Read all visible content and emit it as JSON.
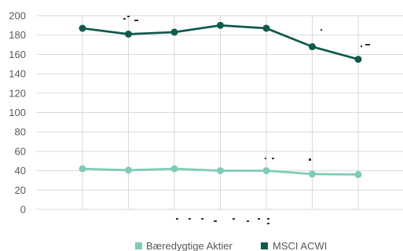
{
  "chart_data": {
    "type": "line",
    "title": "",
    "xlabel": "",
    "ylabel": "",
    "ylim": [
      0,
      200
    ],
    "yticks": [
      0,
      20,
      40,
      60,
      80,
      100,
      120,
      140,
      160,
      180,
      200
    ],
    "grid": true,
    "legend_position": "bottom",
    "x_count": 7,
    "series": [
      {
        "name": "Bæredygtige Aktier",
        "color": "#7fcbb8",
        "values": [
          42,
          40.5,
          42,
          40,
          40,
          36.5,
          36
        ]
      },
      {
        "name": "MSCI ACWI",
        "color": "#0f5a4c",
        "values": [
          187,
          181,
          183,
          190,
          187,
          168,
          155
        ]
      }
    ]
  }
}
